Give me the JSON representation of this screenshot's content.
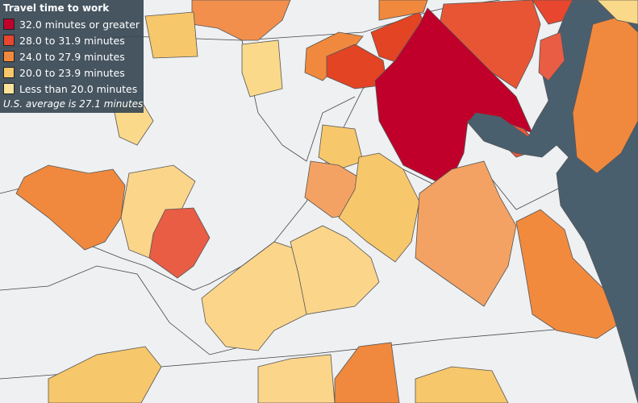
{
  "legend": {
    "title": "Travel time to work",
    "items": [
      {
        "label": "32.0 minutes or greater",
        "color": "#c0022c"
      },
      {
        "label": "28.0 to 31.9 minutes",
        "color": "#e8462f"
      },
      {
        "label": "24.0 to 27.9 minutes",
        "color": "#f0893e"
      },
      {
        "label": "20.0 to 23.9 minutes",
        "color": "#f7c76b"
      },
      {
        "label": "Less than 20.0 minutes",
        "color": "#fbe39a"
      }
    ],
    "note": "U.S. average is 27.1 minutes"
  }
}
